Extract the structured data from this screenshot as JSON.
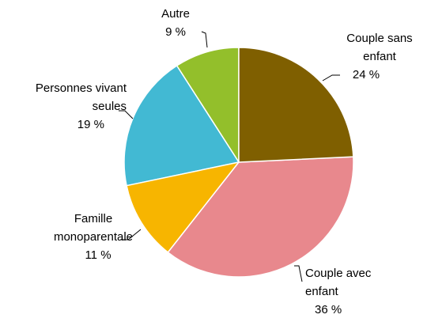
{
  "chart_data": {
    "type": "pie",
    "categories": [
      "Couple sans enfant",
      "Couple avec enfant",
      "Famille monoparentale",
      "Personnes vivant seules",
      "Autre"
    ],
    "values": [
      24,
      36,
      11,
      19,
      9
    ],
    "value_labels": [
      "24 %",
      "36 %",
      "11 %",
      "19 %",
      "9 %"
    ],
    "colors": [
      "#7f5f00",
      "#e8888d",
      "#f7b500",
      "#42b9d3",
      "#93bf2b"
    ]
  }
}
